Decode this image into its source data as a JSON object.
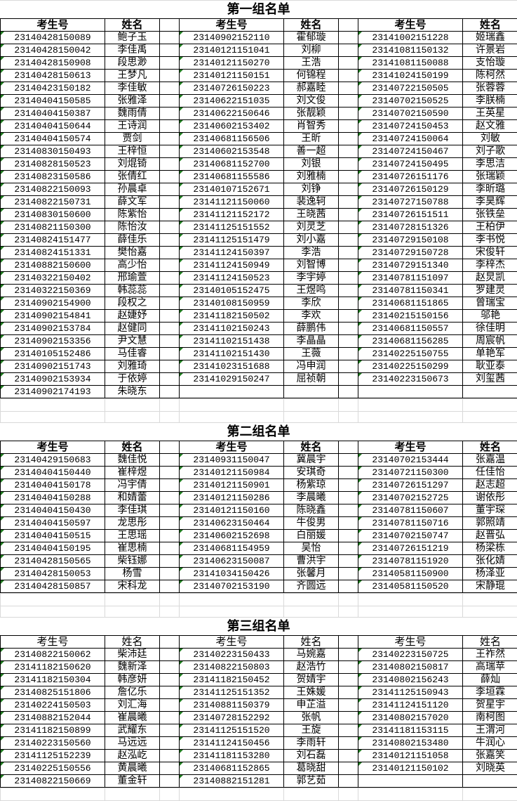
{
  "headers": {
    "id": "考生号",
    "name": "姓名"
  },
  "colors": {
    "number_indicator": "#1e7b1e",
    "grid": "#d9d9d9"
  },
  "groups": [
    {
      "title": "第一组名单",
      "rows": [
        [
          "23140428150089",
          "鲍子玉",
          "23140902152110",
          "霍郁璇",
          "23141002151228",
          "姬瑞鑫"
        ],
        [
          "23140428150042",
          "李佳禹",
          "23140121151041",
          "刘柳",
          "23141081150132",
          "许景岩"
        ],
        [
          "23140428150908",
          "段思渺",
          "23140121150270",
          "王浩",
          "23141081150088",
          "支怡璇"
        ],
        [
          "23140428150613",
          "王梦凡",
          "23140121150151",
          "何锦程",
          "23141024150199",
          "陈柯然"
        ],
        [
          "23140423150182",
          "李佳敏",
          "23140726150223",
          "郝嘉睦",
          "23140722150505",
          "张蓉蓉"
        ],
        [
          "23140404150585",
          "张雅泽",
          "23140622151035",
          "刘文俊",
          "23140702150525",
          "李朕楠"
        ],
        [
          "23140404150387",
          "魏雨倩",
          "23140622150646",
          "张靓颖",
          "23140702150590",
          "王英星"
        ],
        [
          "23140404150644",
          "王诗润",
          "23140602153402",
          "肖智秀",
          "23140724150453",
          "赵文雅"
        ],
        [
          "23140404150574",
          "贾剑",
          "23140681156506",
          "王昕",
          "23140724150064",
          "刘敏"
        ],
        [
          "23140830150493",
          "王梓恒",
          "23140602153548",
          "善一超",
          "23140724150467",
          "刘子歌"
        ],
        [
          "23140828150523",
          "刘焜锜",
          "23140681152700",
          "刘银",
          "23140724150495",
          "李思洁"
        ],
        [
          "23140823150586",
          "张倩红",
          "23140681155586",
          "刘雅楠",
          "23140726151176",
          "张瑞颖"
        ],
        [
          "23140822150093",
          "孙晨卓",
          "23140107152671",
          "刘铮",
          "23140726150129",
          "李昕璐"
        ],
        [
          "23140822150731",
          "薛文军",
          "23141121150060",
          "裴逸轲",
          "23140727150788",
          "李昊辉"
        ],
        [
          "23140830150600",
          "陈紫怡",
          "23141121152172",
          "王晓茜",
          "23140726151511",
          "张铁垒"
        ],
        [
          "23140821150300",
          "陈怡汝",
          "23141125151552",
          "刘灵芝",
          "23140728151326",
          "王柏伊"
        ],
        [
          "23140824151477",
          "薛佳乐",
          "23141125151479",
          "刘小嘉",
          "23140729150108",
          "李书悦"
        ],
        [
          "23140824151331",
          "樊怡嘉",
          "23141124150397",
          "李浩",
          "23140729150728",
          "宋俊轩"
        ],
        [
          "23140882150600",
          "高少怡",
          "23141124150949",
          "刘智博",
          "23140729151340",
          "李梓杰"
        ],
        [
          "23140322150402",
          "邢瑜萱",
          "23141124150523",
          "李宇婷",
          "23140781151097",
          "赵炅凯"
        ],
        [
          "23140322150369",
          "韩蕊蕊",
          "23140105152475",
          "王煜鸣",
          "23140781150341",
          "罗建灵"
        ],
        [
          "23140902154900",
          "段权之",
          "23140108150959",
          "李欣",
          "23140681151865",
          "曾瑞宝"
        ],
        [
          "23140902154841",
          "赵婕妤",
          "23141182150502",
          "李欢",
          "23140215150156",
          "邬艳"
        ],
        [
          "23140902153784",
          "赵健同",
          "23141102150243",
          "薛鹏伟",
          "23140681150557",
          "徐佳明"
        ],
        [
          "23140902153356",
          "尹文慧",
          "23141102151438",
          "李晶晶",
          "23140681156285",
          "周宸帆"
        ],
        [
          "23140105152486",
          "马佳睿",
          "23141102151430",
          "王薇",
          "23140225150755",
          "单艳军"
        ],
        [
          "23140902151743",
          "刘雅琦",
          "23141023151688",
          "冯申润",
          "23140225150299",
          "耿亚泰"
        ],
        [
          "23140902153934",
          "于依婷",
          "23141029150247",
          "屈祯朝",
          "23140223150673",
          "刘玺茜"
        ],
        [
          "23140902174193",
          "朱晓东",
          "",
          "",
          "",
          ""
        ]
      ]
    },
    {
      "title": "第二组名单",
      "rows": [
        [
          "23140429150683",
          "魏佳悦",
          "23140931150047",
          "冀晨宇",
          "23140702153444",
          "张嘉温"
        ],
        [
          "23140404150440",
          "崔梓煜",
          "23140121150984",
          "安琪奇",
          "23140721150300",
          "任佳怡"
        ],
        [
          "23140404150178",
          "冯宇倩",
          "23140121150901",
          "杨紫琼",
          "23140726151297",
          "赵志超"
        ],
        [
          "23140404150288",
          "和婧蕾",
          "23140121150286",
          "李晨曦",
          "23140702152725",
          "谢依彤"
        ],
        [
          "23140404150430",
          "李佳琪",
          "23140121150160",
          "陈晓鑫",
          "23140781150607",
          "董宇琛"
        ],
        [
          "23140404150597",
          "龙思彤",
          "23140623150464",
          "牛俊男",
          "23140781150716",
          "郭照靖"
        ],
        [
          "23140404150515",
          "王思瑶",
          "23140602152698",
          "白丽媛",
          "23140702150747",
          "赵晋弘"
        ],
        [
          "23140404150195",
          "崔思楠",
          "23140681154959",
          "吴怡",
          "23140726151219",
          "杨梁栋"
        ],
        [
          "23140428150565",
          "柴钰娜",
          "23140623150087",
          "曹洪宇",
          "23140781151920",
          "张化婧"
        ],
        [
          "23140428150053",
          "杨雪",
          "23141034150426",
          "张馨月",
          "23140581150900",
          "杨泽亚"
        ],
        [
          "23140428150857",
          "宋科龙",
          "23140702153190",
          "齐圆远",
          "23140581150520",
          "宋静琨"
        ]
      ]
    },
    {
      "title": "第三组名单",
      "rows": [
        [
          "23140822150062",
          "柴沛廷",
          "23140223150433",
          "马婉嘉",
          "23140223150725",
          "王祚然"
        ],
        [
          "23141182150620",
          "魏新泽",
          "23140822150803",
          "赵浩竹",
          "23140802150817",
          "高瑞苹"
        ],
        [
          "23141182150304",
          "韩彦妍",
          "23141182150452",
          "贺婧宇",
          "23140802156243",
          "薛灿"
        ],
        [
          "23140825151806",
          "詹亿乐",
          "23141125151352",
          "王姝媛",
          "23141125150943",
          "李垣霖"
        ],
        [
          "23140224150503",
          "刘汇海",
          "23140881150379",
          "申芷溢",
          "23141124151120",
          "贺星宇"
        ],
        [
          "23140882152044",
          "崔晨曦",
          "23140728152292",
          "张帆",
          "23140802157020",
          "南柯图"
        ],
        [
          "23141182150899",
          "武耀东",
          "23141125151520",
          "王旋",
          "23141181153115",
          "王渭河"
        ],
        [
          "23140223150560",
          "马远远",
          "23141124150456",
          "李雨轩",
          "23140802153480",
          "牛润心"
        ],
        [
          "23141125152239",
          "赵泓屹",
          "23141181153280",
          "刘石磊",
          "23140121151058",
          "张嘉笑"
        ],
        [
          "23140225150556",
          "黄晨曦",
          "23140681152865",
          "葛晓甜",
          "23140121150102",
          "刘晓英"
        ],
        [
          "23140822150669",
          "董金轩",
          "23140882151281",
          "郭艺茹",
          "",
          ""
        ]
      ]
    }
  ]
}
